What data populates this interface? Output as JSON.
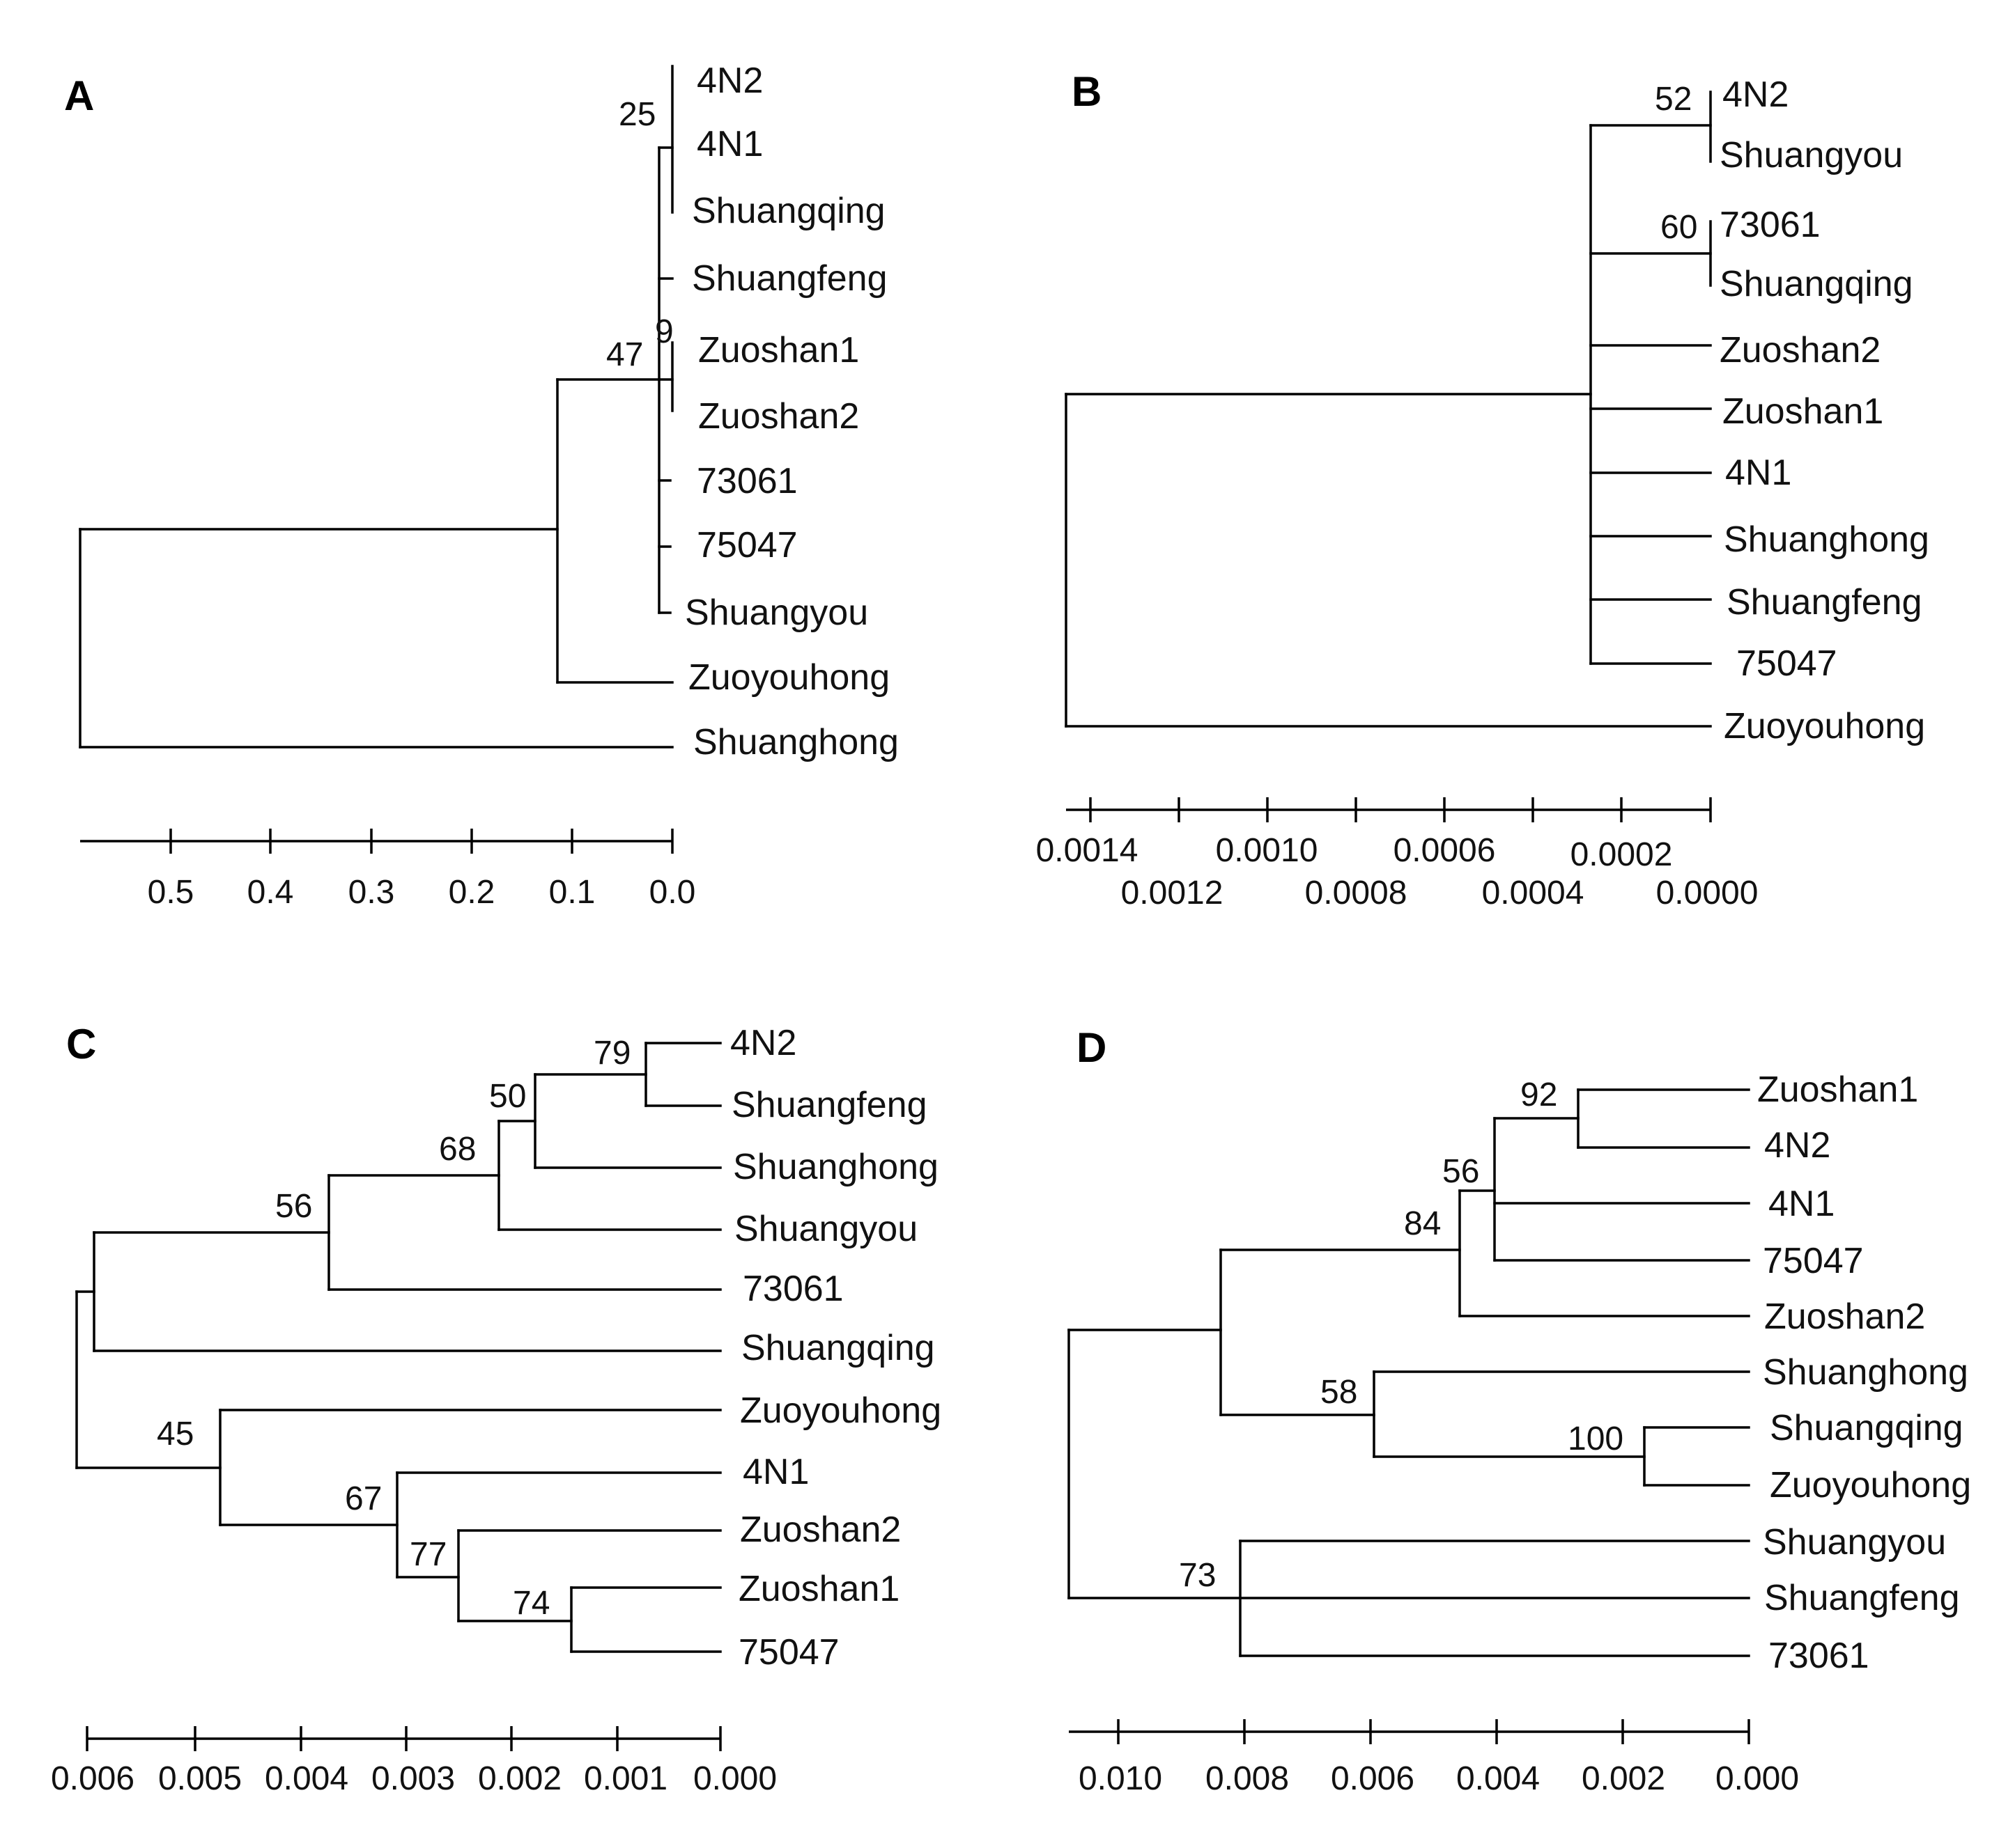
{
  "panels": {
    "A": {
      "label": "A",
      "leaves": [
        "4N2",
        "4N1",
        "Shuangqing",
        "Shuangfeng",
        "Zuoshan1",
        "Zuoshan2",
        "73061",
        "75047",
        "Shuangyou",
        "Zuoyouhong",
        "Shuanghong"
      ],
      "bootstrap": [
        "25",
        "47",
        "9"
      ],
      "ticks": [
        "0.5",
        "0.4",
        "0.3",
        "0.2",
        "0.1",
        "0.0"
      ]
    },
    "B": {
      "label": "B",
      "leaves": [
        "4N2",
        "Shuangyou",
        "73061",
        "Shuangqing",
        "Zuoshan2",
        "Zuoshan1",
        "4N1",
        "Shuanghong",
        "Shuangfeng",
        "75047",
        "Zuoyouhong"
      ],
      "bootstrap": [
        "52",
        "60"
      ],
      "ticks": [
        "0.0014",
        "0.0012",
        "0.0010",
        "0.0008",
        "0.0006",
        "0.0004",
        "0.0002",
        "0.0000"
      ]
    },
    "C": {
      "label": "C",
      "leaves": [
        "4N2",
        "Shuangfeng",
        "Shuanghong",
        "Shuangyou",
        "73061",
        "Shuangqing",
        "Zuoyouhong",
        "4N1",
        "Zuoshan2",
        "Zuoshan1",
        "75047"
      ],
      "bootstrap": [
        "79",
        "50",
        "68",
        "56",
        "45",
        "67",
        "77",
        "74"
      ],
      "ticks": [
        "0.006",
        "0.005",
        "0.004",
        "0.003",
        "0.002",
        "0.001",
        "0.000"
      ]
    },
    "D": {
      "label": "D",
      "leaves": [
        "Zuoshan1",
        "4N2",
        "4N1",
        "75047",
        "Zuoshan2",
        "Shuanghong",
        "Shuangqing",
        "Zuoyouhong",
        "Shuangyou",
        "Shuangfeng",
        "73061"
      ],
      "bootstrap": [
        "92",
        "56",
        "84",
        "58",
        "100",
        "73"
      ],
      "ticks": [
        "0.010",
        "0.008",
        "0.006",
        "0.004",
        "0.002",
        "0.000"
      ]
    }
  }
}
